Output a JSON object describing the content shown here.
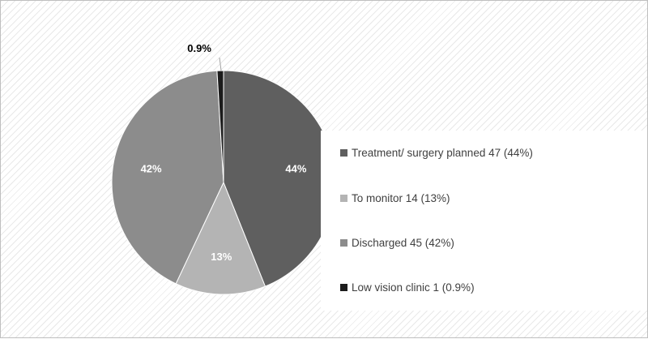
{
  "chart_data": {
    "type": "pie",
    "slices": [
      {
        "legend": "Treatment/ surgery planned 47 (44%)",
        "value": 47,
        "percent_label": "44%",
        "color": "#5f5f5f",
        "label_color": "#ffffff"
      },
      {
        "legend": "To monitor 14 (13%)",
        "value": 14,
        "percent_label": "13%",
        "color": "#b4b4b4",
        "label_color": "#ffffff"
      },
      {
        "legend": "Discharged 45 (42%)",
        "value": 45,
        "percent_label": "42%",
        "color": "#8c8c8c",
        "label_color": "#ffffff"
      },
      {
        "legend": "Low vision clinic 1 (0.9%)",
        "value": 1,
        "percent_label": "0.9%",
        "color": "#1c1c1c",
        "label_color": "#000000"
      }
    ],
    "start_angle": "12 o'clock",
    "direction": "clockwise",
    "legend_position": "right"
  }
}
